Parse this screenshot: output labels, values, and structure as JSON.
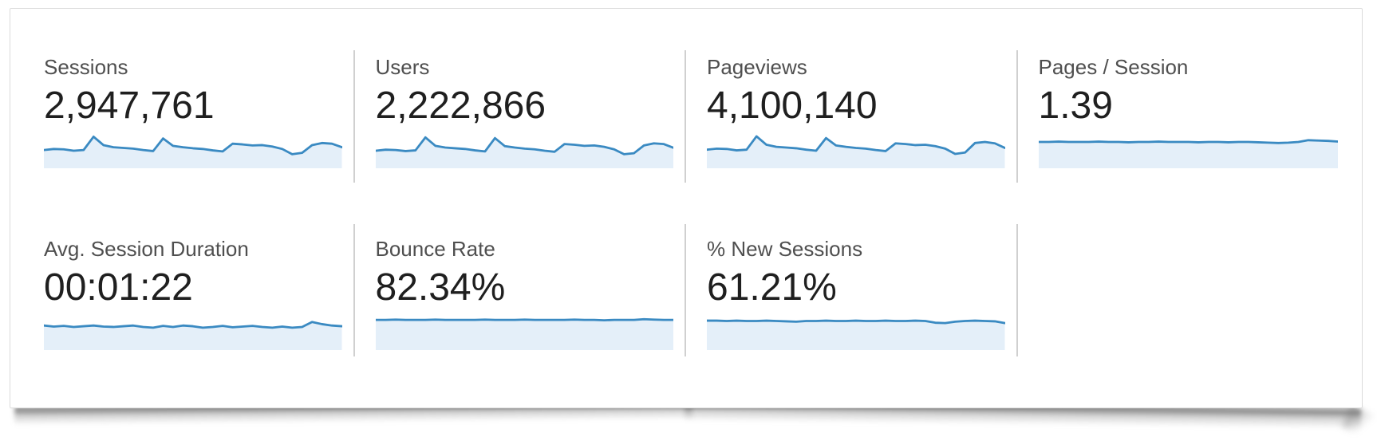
{
  "page_background": "#ffffff",
  "colors": {
    "sparkline_line": "#3a8ac2",
    "sparkline_fill": "#e4eff9",
    "divider": "#d0d0d0",
    "panel_border": "#dbdbdb",
    "label_text": "#4f4f4f",
    "value_text": "#1f1f1f"
  },
  "panel": {
    "metrics": [
      {
        "label": "Sessions",
        "value": "2,947,761"
      },
      {
        "label": "Users",
        "value": "2,222,866"
      },
      {
        "label": "Pageviews",
        "value": "4,100,140"
      },
      {
        "label": "Pages / Session",
        "value": "1.39"
      },
      {
        "label": "Avg. Session Duration",
        "value": "00:01:22"
      },
      {
        "label": "Bounce Rate",
        "value": "82.34%"
      },
      {
        "label": "% New Sessions",
        "value": "61.21%"
      }
    ]
  },
  "chart_data": [
    {
      "type": "area",
      "title": "Sessions",
      "current_value": "2,947,761",
      "x": "time (unlabeled sparkline, ~30 intervals)",
      "axes": "hidden",
      "values_normalized": [
        0.52,
        0.55,
        0.54,
        0.5,
        0.52,
        0.9,
        0.66,
        0.6,
        0.58,
        0.56,
        0.52,
        0.49,
        0.85,
        0.64,
        0.6,
        0.57,
        0.55,
        0.51,
        0.48,
        0.7,
        0.68,
        0.65,
        0.66,
        0.62,
        0.55,
        0.4,
        0.44,
        0.66,
        0.72,
        0.7,
        0.6
      ]
    },
    {
      "type": "area",
      "title": "Users",
      "current_value": "2,222,866",
      "x": "time (unlabeled sparkline, ~30 intervals)",
      "axes": "hidden",
      "values_normalized": [
        0.5,
        0.53,
        0.52,
        0.49,
        0.51,
        0.88,
        0.64,
        0.59,
        0.57,
        0.55,
        0.51,
        0.48,
        0.86,
        0.63,
        0.59,
        0.56,
        0.54,
        0.5,
        0.47,
        0.69,
        0.67,
        0.64,
        0.65,
        0.61,
        0.54,
        0.4,
        0.43,
        0.65,
        0.71,
        0.69,
        0.58
      ]
    },
    {
      "type": "area",
      "title": "Pageviews",
      "current_value": "4,100,140",
      "x": "time (unlabeled sparkline, ~30 intervals)",
      "axes": "hidden",
      "values_normalized": [
        0.53,
        0.56,
        0.55,
        0.51,
        0.53,
        0.91,
        0.67,
        0.61,
        0.59,
        0.57,
        0.53,
        0.5,
        0.86,
        0.65,
        0.61,
        0.58,
        0.56,
        0.52,
        0.49,
        0.71,
        0.69,
        0.66,
        0.67,
        0.63,
        0.56,
        0.41,
        0.45,
        0.72,
        0.75,
        0.71,
        0.58
      ]
    },
    {
      "type": "area",
      "title": "Pages / Session",
      "current_value": "1.39",
      "x": "time (unlabeled sparkline, ~30 intervals)",
      "axes": "hidden",
      "values_normalized": [
        0.75,
        0.75,
        0.76,
        0.75,
        0.75,
        0.75,
        0.76,
        0.75,
        0.75,
        0.74,
        0.75,
        0.75,
        0.76,
        0.75,
        0.75,
        0.75,
        0.74,
        0.75,
        0.75,
        0.74,
        0.75,
        0.75,
        0.74,
        0.73,
        0.72,
        0.73,
        0.75,
        0.8,
        0.79,
        0.78,
        0.76
      ]
    },
    {
      "type": "area",
      "title": "Avg. Session Duration",
      "current_value": "00:01:22",
      "x": "time (unlabeled sparkline, ~30 intervals)",
      "axes": "hidden",
      "values_normalized": [
        0.7,
        0.67,
        0.69,
        0.66,
        0.68,
        0.7,
        0.67,
        0.66,
        0.68,
        0.7,
        0.66,
        0.64,
        0.69,
        0.66,
        0.7,
        0.68,
        0.64,
        0.66,
        0.69,
        0.65,
        0.67,
        0.69,
        0.66,
        0.64,
        0.67,
        0.64,
        0.66,
        0.8,
        0.74,
        0.7,
        0.68
      ]
    },
    {
      "type": "area",
      "title": "Bounce Rate",
      "current_value": "82.34%",
      "x": "time (unlabeled sparkline, ~30 intervals)",
      "axes": "hidden",
      "values_normalized": [
        0.86,
        0.86,
        0.87,
        0.86,
        0.86,
        0.86,
        0.87,
        0.86,
        0.86,
        0.86,
        0.86,
        0.87,
        0.86,
        0.86,
        0.86,
        0.87,
        0.86,
        0.86,
        0.86,
        0.86,
        0.87,
        0.86,
        0.86,
        0.85,
        0.86,
        0.86,
        0.86,
        0.88,
        0.87,
        0.86,
        0.86
      ]
    },
    {
      "type": "area",
      "title": "% New Sessions",
      "current_value": "61.21%",
      "x": "time (unlabeled sparkline, ~30 intervals)",
      "axes": "hidden",
      "values_normalized": [
        0.84,
        0.84,
        0.83,
        0.84,
        0.83,
        0.83,
        0.84,
        0.83,
        0.82,
        0.81,
        0.83,
        0.83,
        0.84,
        0.83,
        0.83,
        0.84,
        0.83,
        0.83,
        0.84,
        0.83,
        0.83,
        0.84,
        0.83,
        0.78,
        0.77,
        0.81,
        0.83,
        0.84,
        0.83,
        0.82,
        0.77
      ]
    }
  ]
}
